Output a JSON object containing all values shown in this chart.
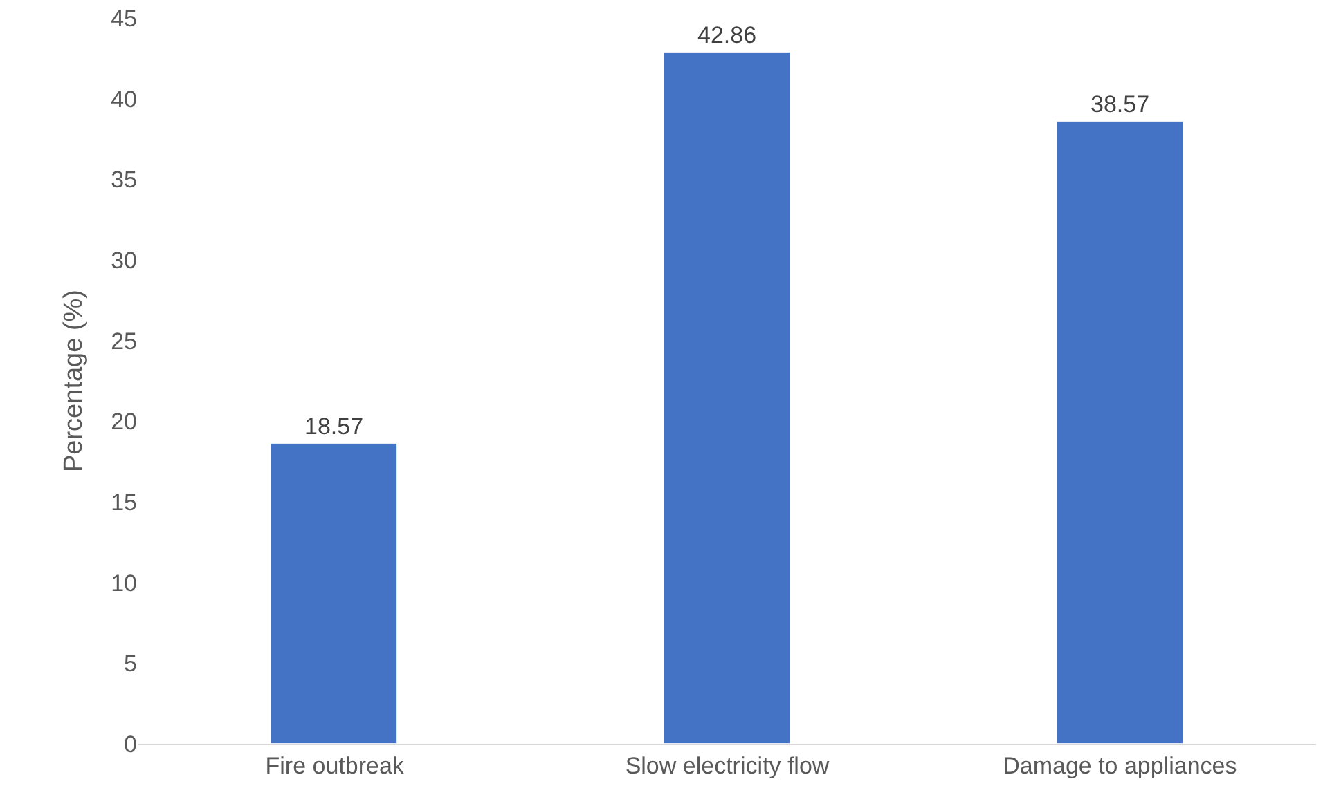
{
  "chart_data": {
    "type": "bar",
    "ylabel": "Percentage (%)",
    "categories": [
      "Fire outbreak",
      "Slow electricity flow",
      "Damage to appliances"
    ],
    "values": [
      18.57,
      42.86,
      38.57
    ],
    "color": "#4472c4",
    "ylim": [
      0,
      45
    ],
    "yticks": [
      0,
      5,
      10,
      15,
      20,
      25,
      30,
      35,
      40,
      45
    ],
    "data_labels": true
  }
}
